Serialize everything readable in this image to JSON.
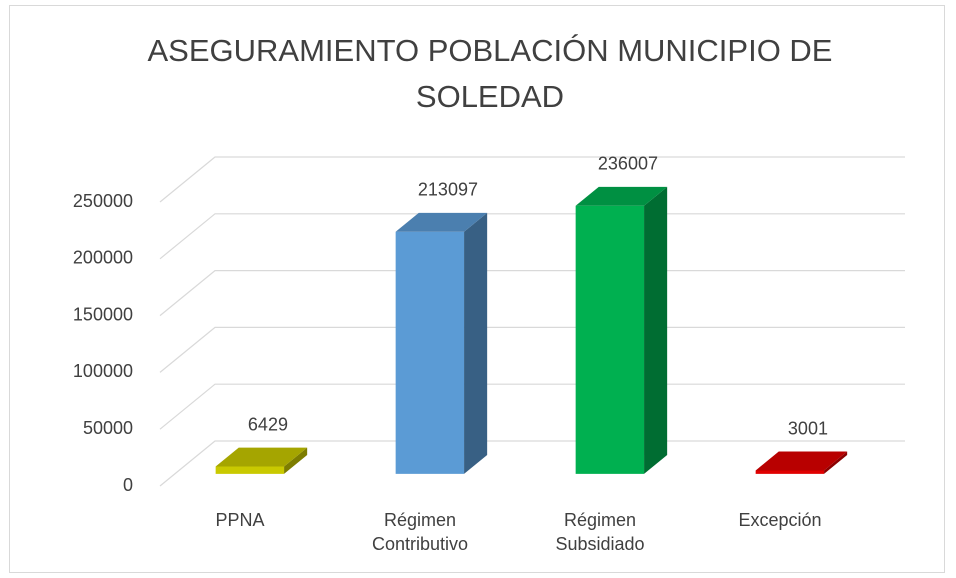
{
  "chart_data": {
    "type": "bar3d",
    "title": "ASEGURAMIENTO POBLACIÓN MUNICIPIO DE SOLEDAD",
    "categories": [
      "PPNA",
      "Régimen Contributivo",
      "Régimen Subsidiado",
      "Excepción"
    ],
    "values": [
      6429,
      213097,
      236007,
      3001
    ],
    "colors": [
      "#c9c900",
      "#5b9bd5",
      "#00b050",
      "#e00000"
    ],
    "ylim": [
      0,
      250000
    ],
    "yticks": [
      0,
      50000,
      100000,
      150000,
      200000,
      250000
    ],
    "grid": true
  }
}
